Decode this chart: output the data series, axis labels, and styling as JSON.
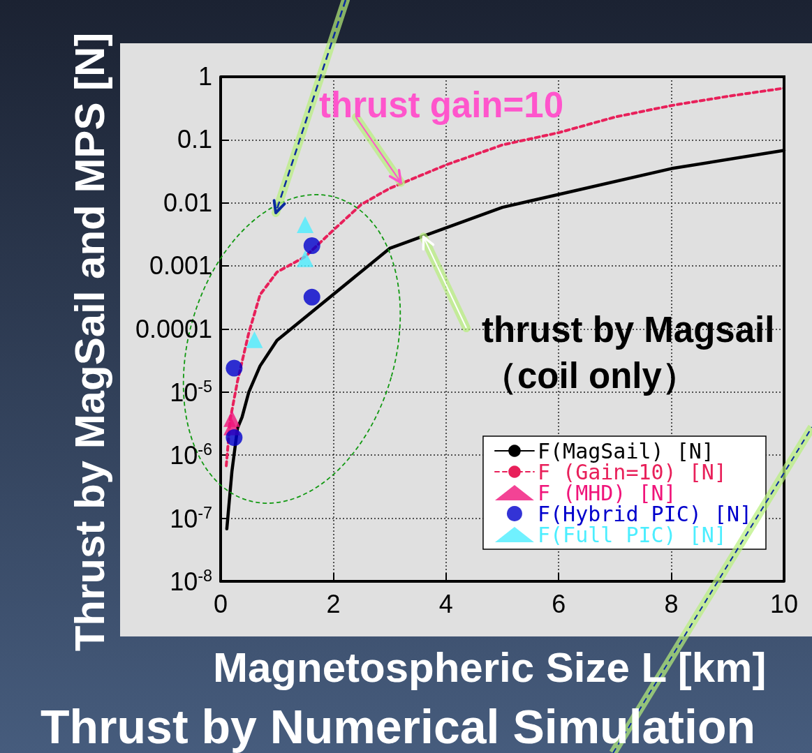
{
  "chart_data": {
    "type": "line",
    "title": "Thrust by Numerical Simulation",
    "xlabel": "Magnetospheric Size L [km]",
    "ylabel": "Thrust by MagSail and MPS [N]",
    "series": [
      {
        "name": "F(MagSail) [N]",
        "color": "#000000",
        "marker": "none",
        "line_style": "solid",
        "x": [
          0.11,
          0.2,
          0.3,
          0.38,
          0.5,
          0.7,
          1.0,
          3.0,
          5.0,
          8.0,
          10
        ],
        "values": [
          6.8e-08,
          5.5e-07,
          2.7e-06,
          4e-06,
          1e-05,
          2.6e-05,
          6.6e-05,
          0.0019,
          0.0085,
          0.035,
          0.068
        ]
      },
      {
        "name": "F (Gain=10) [N]",
        "color": "#e8205a",
        "marker": "none",
        "line_style": "dashed",
        "x": [
          0.1,
          0.17,
          0.3,
          0.5,
          0.7,
          1.0,
          1.5,
          2.0,
          2.5,
          3.0,
          4.0,
          5.0,
          6.0,
          7.0,
          8.0,
          9.0,
          10
        ],
        "values": [
          6.8e-07,
          3.7e-06,
          1.5e-05,
          8.7e-05,
          0.00035,
          0.0008,
          0.0014,
          0.0037,
          0.0095,
          0.017,
          0.04,
          0.083,
          0.13,
          0.23,
          0.35,
          0.49,
          0.66
        ]
      },
      {
        "name": "F (MHD) [N]",
        "type": "scatter",
        "color": "#f0147a",
        "marker": "triangle",
        "x": [
          0.2,
          0.2
        ],
        "values": [
          3.8e-06,
          2.8e-06
        ]
      },
      {
        "name": "F(Hybrid PIC) [N]",
        "type": "scatter",
        "color": "#0000cc",
        "marker": "circle",
        "x": [
          0.24,
          0.24,
          1.62,
          1.62
        ],
        "values": [
          2.4e-05,
          1.9e-06,
          0.0021,
          0.00032
        ]
      },
      {
        "name": "F(Full PIC) [N]",
        "type": "scatter",
        "color": "#4ceeff",
        "marker": "triangle",
        "x": [
          1.5,
          1.5,
          0.6
        ],
        "values": [
          0.0045,
          0.0013,
          6.8e-05
        ]
      }
    ],
    "annotations": [
      {
        "text": "thrust gain=10",
        "x": 3.2,
        "y": 0.021
      },
      {
        "text": "thrust by Magsail\n（coil only）",
        "x": 3.6,
        "y": 0.0029
      }
    ],
    "xlim": [
      0,
      10
    ],
    "xticks": [
      0,
      2,
      4,
      6,
      8,
      10
    ],
    "ylim": [
      1e-08,
      1
    ],
    "log": "y",
    "yticks": [
      1,
      0.1,
      0.01,
      0.001,
      0.0001,
      {
        "value": 1e-05,
        "label": "10$^{-5}$"
      },
      {
        "value": 1e-06,
        "label": "10$^{-6}$"
      },
      {
        "value": 1e-07,
        "label": "10$^{-7}$"
      },
      {
        "value": 1e-08,
        "label": "10$^{-8}$"
      }
    ],
    "grid": true,
    "legend": "bottom right"
  }
}
